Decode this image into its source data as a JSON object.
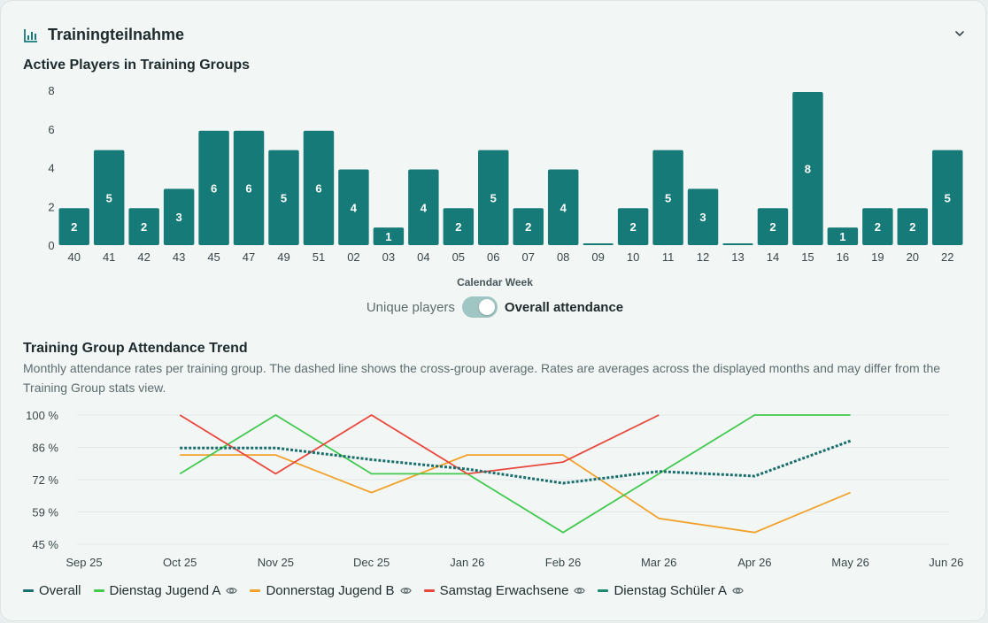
{
  "header": {
    "title": "Trainingteilnahme"
  },
  "bar_section": {
    "title": "Active Players in Training Groups"
  },
  "toggle": {
    "left_label": "Unique players",
    "right_label": "Overall attendance",
    "state": "on"
  },
  "trend_section": {
    "title": "Training Group Attendance Trend",
    "description": "Monthly attendance rates per training group. The dashed line shows the cross-group average. Rates are averages across the displayed months and may differ from the Training Group stats view."
  },
  "colors": {
    "bar": "#167a78",
    "overall": "#1a6e6b",
    "jugend_a": "#43c94e",
    "jugend_b": "#f2a22c",
    "erwachsene": "#e8473c",
    "schueler_a": "#1f8a72"
  },
  "chart_data": [
    {
      "type": "bar",
      "title": "Active Players in Training Groups",
      "xlabel": "Calendar Week",
      "ylabel": "",
      "ylim": [
        0,
        8
      ],
      "yticks": [
        0,
        2,
        4,
        6,
        8
      ],
      "categories": [
        "40",
        "41",
        "42",
        "43",
        "45",
        "47",
        "49",
        "51",
        "02",
        "03",
        "04",
        "05",
        "06",
        "07",
        "08",
        "09",
        "10",
        "11",
        "12",
        "13",
        "14",
        "15",
        "16",
        "19",
        "20",
        "22"
      ],
      "values": [
        2,
        5,
        2,
        3,
        6,
        6,
        5,
        6,
        4,
        1,
        4,
        2,
        5,
        2,
        4,
        0,
        2,
        5,
        3,
        0,
        2,
        8,
        1,
        2,
        2,
        5
      ],
      "grid": false
    },
    {
      "type": "line",
      "title": "Training Group Attendance Trend",
      "x": [
        "Sep 25",
        "Oct 25",
        "Nov 25",
        "Dec 25",
        "Jan 26",
        "Feb 26",
        "Mar 26",
        "Apr 26",
        "May 26",
        "Jun 26"
      ],
      "ylim": [
        45,
        100
      ],
      "yticks": [
        "100 %",
        "86 %",
        "72 %",
        "59 %",
        "45 %"
      ],
      "grid": true,
      "legend_position": "bottom-left",
      "series": [
        {
          "name": "Overall",
          "key": "overall",
          "dashed": true,
          "values": [
            null,
            86,
            86,
            81,
            77,
            71,
            76,
            74,
            89,
            null
          ]
        },
        {
          "name": "Dienstag Jugend A",
          "key": "jugend_a",
          "dashed": false,
          "values": [
            null,
            75,
            100,
            75,
            75,
            50,
            75,
            100,
            100,
            null
          ]
        },
        {
          "name": "Donnerstag Jugend B",
          "key": "jugend_b",
          "dashed": false,
          "values": [
            null,
            83,
            83,
            67,
            83,
            83,
            56,
            50,
            67,
            null
          ]
        },
        {
          "name": "Samstag Erwachsene",
          "key": "erwachsene",
          "dashed": false,
          "values": [
            null,
            100,
            75,
            100,
            75,
            80,
            100,
            null,
            null,
            null
          ]
        },
        {
          "name": "Dienstag Schüler A",
          "key": "schueler_a",
          "dashed": false,
          "values": [
            null,
            null,
            null,
            null,
            null,
            null,
            null,
            null,
            null,
            null
          ]
        }
      ]
    }
  ]
}
